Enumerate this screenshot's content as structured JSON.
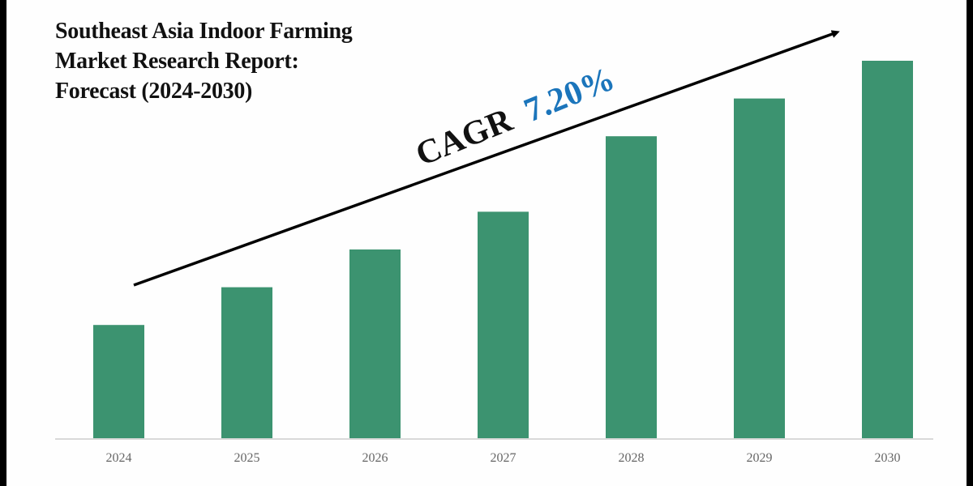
{
  "chart_data": {
    "type": "bar",
    "title_lines": [
      "Southeast Asia Indoor Farming",
      "Market Research Report:",
      "Forecast (2024-2030)"
    ],
    "categories": [
      "2024",
      "2025",
      "2026",
      "2027",
      "2028",
      "2029",
      "2030"
    ],
    "values": [
      30,
      40,
      50,
      60,
      80,
      90,
      100
    ],
    "value_units": "relative (2030 = 100); no y-axis shown",
    "ylim": [
      0,
      100
    ],
    "xlabel": "",
    "ylabel": "",
    "grid": false,
    "legend": "none",
    "annotation": {
      "cagr_label": "CAGR",
      "cagr_value": "7.20%",
      "trend_arrow": "upward"
    },
    "colors": {
      "bar": "#3c9370",
      "cagr_value": "#1b75bb",
      "text": "#111111",
      "tick_label": "#666666",
      "axis": "#d9d9d9"
    }
  }
}
